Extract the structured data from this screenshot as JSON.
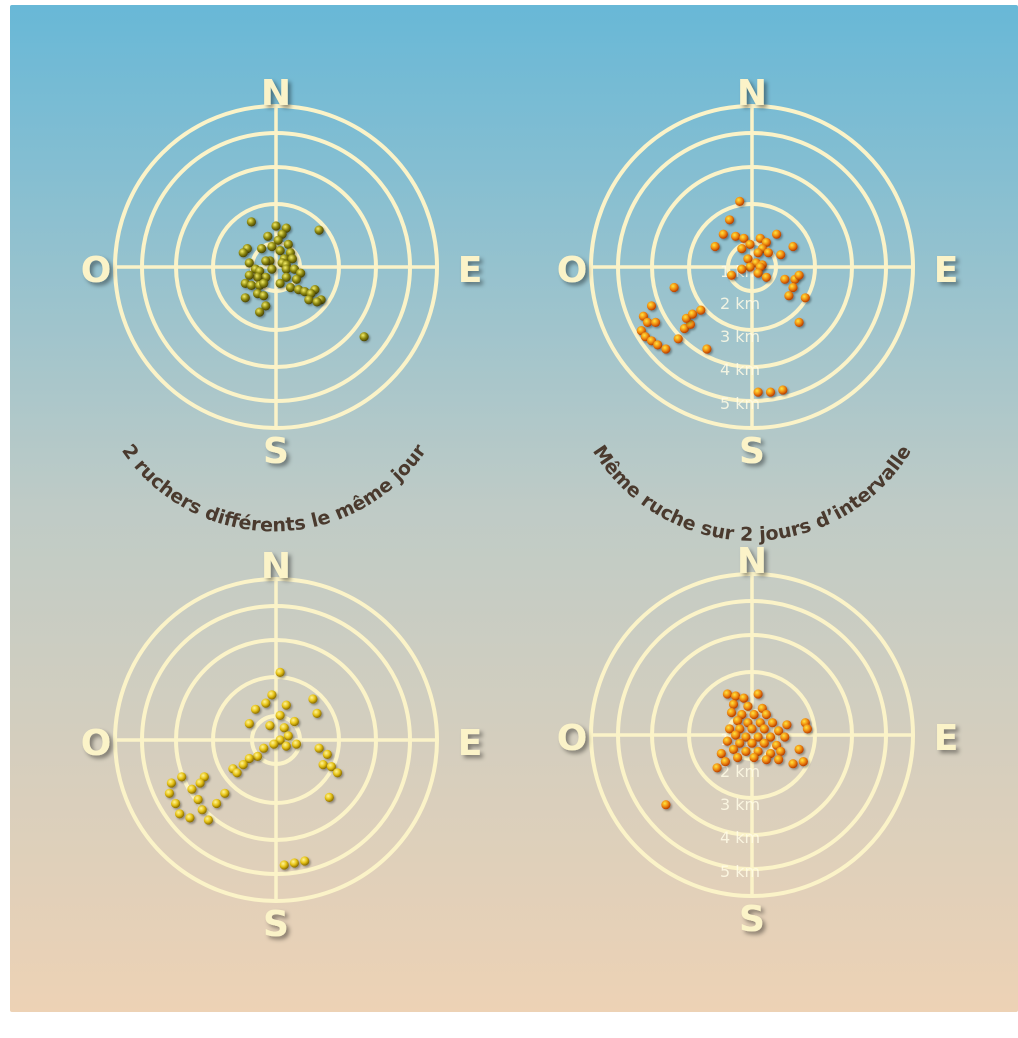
{
  "colors": {
    "background_top": "#68b8d7",
    "background_mid": "#bfcbc6",
    "background_bottom": "#edd2b5",
    "ring_color": "#fbf3c8",
    "compass_letter": "#fbf3c8",
    "caption": "#4a3a2e",
    "dot_olive": "#8f8a12",
    "dot_gold": "#e6c214",
    "dot_orange": "#f08c10"
  },
  "compass": {
    "north": "N",
    "south": "S",
    "east": "E",
    "west": "O"
  },
  "distance_labels": [
    "1 km",
    "2 km",
    "3 km",
    "4 km",
    "5 km"
  ],
  "captions": {
    "top_left": "2 ruchers différents le même jour",
    "top_right": "Même ruche sur 2 jours d’intervalle"
  },
  "charts": [
    {
      "id": "top-left",
      "dot_color": "olive",
      "show_km_labels": false,
      "points": [
        [
          -1.2,
          -2.2
        ],
        [
          0,
          -2
        ],
        [
          0.5,
          -1.9
        ],
        [
          0.3,
          -1.6
        ],
        [
          -0.4,
          -1.5
        ],
        [
          0.1,
          -1.3
        ],
        [
          -0.2,
          -1.0
        ],
        [
          0.6,
          -1.1
        ],
        [
          0.2,
          -0.8
        ],
        [
          -0.7,
          -0.9
        ],
        [
          -1.4,
          -0.9
        ],
        [
          -1.6,
          -0.7
        ],
        [
          0.7,
          -0.7
        ],
        [
          0.4,
          -0.4
        ],
        [
          -0.3,
          -0.3
        ],
        [
          0.8,
          -0.4
        ],
        [
          0.3,
          -0.2
        ],
        [
          0.5,
          -0.1
        ],
        [
          -0.5,
          -0.3
        ],
        [
          -1.3,
          -0.2
        ],
        [
          2.1,
          -1.8
        ],
        [
          -1.0,
          0.1
        ],
        [
          -0.8,
          0.2
        ],
        [
          -0.2,
          0.1
        ],
        [
          0.5,
          0.1
        ],
        [
          0.9,
          0.1
        ],
        [
          1.2,
          0.3
        ],
        [
          1.0,
          0.6
        ],
        [
          0.5,
          0.5
        ],
        [
          -0.5,
          0.5
        ],
        [
          -0.9,
          0.5
        ],
        [
          -1.3,
          0.4
        ],
        [
          -1.5,
          0.8
        ],
        [
          -1.2,
          0.9
        ],
        [
          -0.8,
          0.9
        ],
        [
          -0.6,
          0.8
        ],
        [
          0.2,
          0.8
        ],
        [
          0.7,
          1.0
        ],
        [
          1.1,
          1.1
        ],
        [
          1.4,
          1.2
        ],
        [
          1.9,
          1.1
        ],
        [
          1.7,
          1.3
        ],
        [
          1.6,
          1.6
        ],
        [
          2.2,
          1.6
        ],
        [
          2.0,
          1.7
        ],
        [
          -1.5,
          1.5
        ],
        [
          -0.9,
          1.3
        ],
        [
          -0.6,
          1.4
        ],
        [
          -0.5,
          1.9
        ],
        [
          -0.8,
          2.2
        ],
        [
          4.3,
          3.4
        ]
      ]
    },
    {
      "id": "top-right",
      "dot_color": "orange",
      "show_km_labels": true,
      "points": [
        [
          -0.6,
          -3.2
        ],
        [
          -1.1,
          -2.3
        ],
        [
          -1.4,
          -1.6
        ],
        [
          -0.8,
          -1.5
        ],
        [
          -0.4,
          -1.4
        ],
        [
          -0.1,
          -1.1
        ],
        [
          0.4,
          -1.4
        ],
        [
          0.7,
          -1.2
        ],
        [
          0.5,
          -0.9
        ],
        [
          1.2,
          -1.6
        ],
        [
          2.0,
          -1.0
        ],
        [
          -1.8,
          -1.0
        ],
        [
          -0.5,
          -0.9
        ],
        [
          0.3,
          -0.7
        ],
        [
          0.8,
          -0.7
        ],
        [
          1.4,
          -0.6
        ],
        [
          -0.2,
          -0.4
        ],
        [
          0.2,
          -0.2
        ],
        [
          0.5,
          -0.1
        ],
        [
          -0.1,
          0.0
        ],
        [
          0.4,
          0.0
        ],
        [
          -0.5,
          0.1
        ],
        [
          -1.0,
          0.4
        ],
        [
          0.3,
          0.3
        ],
        [
          0.7,
          0.5
        ],
        [
          1.6,
          0.6
        ],
        [
          2.1,
          0.6
        ],
        [
          2.3,
          0.4
        ],
        [
          2.0,
          1.0
        ],
        [
          1.8,
          1.4
        ],
        [
          2.6,
          1.5
        ],
        [
          2.3,
          2.7
        ],
        [
          -4.9,
          1.9
        ],
        [
          -5.3,
          2.4
        ],
        [
          -5.1,
          2.7
        ],
        [
          -4.7,
          2.7
        ],
        [
          -5.4,
          3.1
        ],
        [
          -5.2,
          3.4
        ],
        [
          -4.9,
          3.6
        ],
        [
          -4.6,
          3.8
        ],
        [
          -4.2,
          4.0
        ],
        [
          -3.6,
          3.5
        ],
        [
          -3.3,
          3.0
        ],
        [
          -3.0,
          2.8
        ],
        [
          -3.2,
          2.5
        ],
        [
          -2.9,
          2.3
        ],
        [
          -2.5,
          2.1
        ],
        [
          -3.8,
          1.0
        ],
        [
          -2.2,
          4.0
        ],
        [
          0.3,
          6.1
        ],
        [
          0.9,
          6.1
        ],
        [
          1.5,
          6.0
        ]
      ]
    },
    {
      "id": "bottom-left",
      "dot_color": "gold",
      "show_km_labels": false,
      "points": [
        [
          0.2,
          -3.3
        ],
        [
          -0.2,
          -2.2
        ],
        [
          -0.5,
          -1.8
        ],
        [
          0.5,
          -1.7
        ],
        [
          1.8,
          -2.0
        ],
        [
          -1.0,
          -1.5
        ],
        [
          0.2,
          -1.2
        ],
        [
          0.9,
          -0.9
        ],
        [
          0.4,
          -0.6
        ],
        [
          -0.3,
          -0.7
        ],
        [
          -1.3,
          -0.8
        ],
        [
          2.0,
          -1.3
        ],
        [
          0.6,
          -0.2
        ],
        [
          0.2,
          0.0
        ],
        [
          -0.1,
          0.2
        ],
        [
          0.5,
          0.3
        ],
        [
          1.0,
          0.2
        ],
        [
          -0.6,
          0.4
        ],
        [
          -0.9,
          0.8
        ],
        [
          -1.3,
          0.9
        ],
        [
          -1.6,
          1.2
        ],
        [
          -2.1,
          1.4
        ],
        [
          -1.9,
          1.6
        ],
        [
          2.1,
          0.4
        ],
        [
          2.5,
          0.7
        ],
        [
          2.3,
          1.2
        ],
        [
          2.7,
          1.3
        ],
        [
          3.0,
          1.6
        ],
        [
          2.6,
          2.8
        ],
        [
          -3.5,
          1.8
        ],
        [
          -3.7,
          2.1
        ],
        [
          -4.1,
          2.4
        ],
        [
          -4.6,
          1.8
        ],
        [
          -5.1,
          2.1
        ],
        [
          -5.2,
          2.6
        ],
        [
          -4.9,
          3.1
        ],
        [
          -4.7,
          3.6
        ],
        [
          -4.2,
          3.8
        ],
        [
          -3.3,
          3.9
        ],
        [
          -3.6,
          3.4
        ],
        [
          -3.8,
          2.9
        ],
        [
          -2.9,
          3.1
        ],
        [
          -2.5,
          2.6
        ],
        [
          0.4,
          6.1
        ],
        [
          0.9,
          6.0
        ],
        [
          1.4,
          5.9
        ]
      ]
    },
    {
      "id": "bottom-right",
      "dot_color": "orange",
      "show_km_labels": true,
      "points": [
        [
          -1.2,
          -2.0
        ],
        [
          -0.8,
          -1.9
        ],
        [
          -0.4,
          -1.8
        ],
        [
          0.3,
          -2.0
        ],
        [
          -0.9,
          -1.5
        ],
        [
          -0.2,
          -1.4
        ],
        [
          0.5,
          -1.3
        ],
        [
          -1.0,
          -1.1
        ],
        [
          -0.5,
          -1.0
        ],
        [
          0.1,
          -1.0
        ],
        [
          0.7,
          -1.0
        ],
        [
          -0.7,
          -0.7
        ],
        [
          -0.2,
          -0.6
        ],
        [
          0.4,
          -0.6
        ],
        [
          1.0,
          -0.6
        ],
        [
          -1.1,
          -0.3
        ],
        [
          -0.6,
          -0.3
        ],
        [
          0.0,
          -0.3
        ],
        [
          0.6,
          -0.3
        ],
        [
          1.3,
          -0.2
        ],
        [
          -0.8,
          0.0
        ],
        [
          -0.3,
          0.1
        ],
        [
          0.3,
          0.1
        ],
        [
          0.9,
          0.1
        ],
        [
          1.6,
          0.1
        ],
        [
          -1.2,
          0.3
        ],
        [
          -0.6,
          0.4
        ],
        [
          0.0,
          0.4
        ],
        [
          0.6,
          0.4
        ],
        [
          1.2,
          0.5
        ],
        [
          -0.9,
          0.7
        ],
        [
          -0.3,
          0.8
        ],
        [
          0.3,
          0.8
        ],
        [
          0.9,
          0.9
        ],
        [
          1.4,
          0.8
        ],
        [
          -1.5,
          0.9
        ],
        [
          -1.3,
          1.3
        ],
        [
          -0.7,
          1.1
        ],
        [
          0.1,
          1.1
        ],
        [
          0.7,
          1.2
        ],
        [
          1.3,
          1.2
        ],
        [
          2.0,
          1.4
        ],
        [
          2.6,
          -0.6
        ],
        [
          2.7,
          -0.3
        ],
        [
          2.3,
          0.7
        ],
        [
          2.5,
          1.3
        ],
        [
          1.7,
          -0.5
        ],
        [
          -1.7,
          1.6
        ],
        [
          -4.2,
          3.4
        ]
      ]
    }
  ]
}
